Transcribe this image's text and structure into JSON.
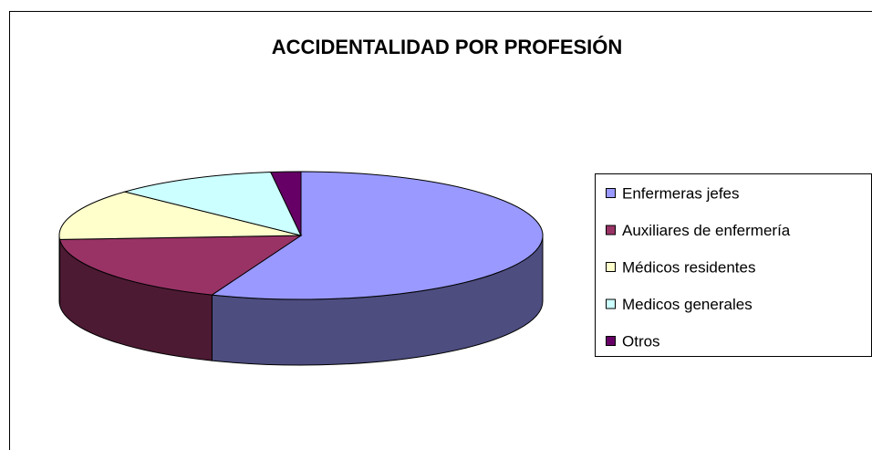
{
  "chart_data": {
    "type": "pie",
    "style": "3d",
    "title": "ACCIDENTALIDAD POR PROFESIÓN",
    "categories": [
      "Enfermeras jefes",
      "Auxiliares de enfermería",
      "Médicos residentes",
      "Medicos generales",
      "Otros"
    ],
    "values": [
      56,
      18,
      13,
      11,
      2
    ],
    "colors": [
      "#9999ff",
      "#993366",
      "#ffffcc",
      "#ccffff",
      "#660066"
    ],
    "legend": "right"
  }
}
